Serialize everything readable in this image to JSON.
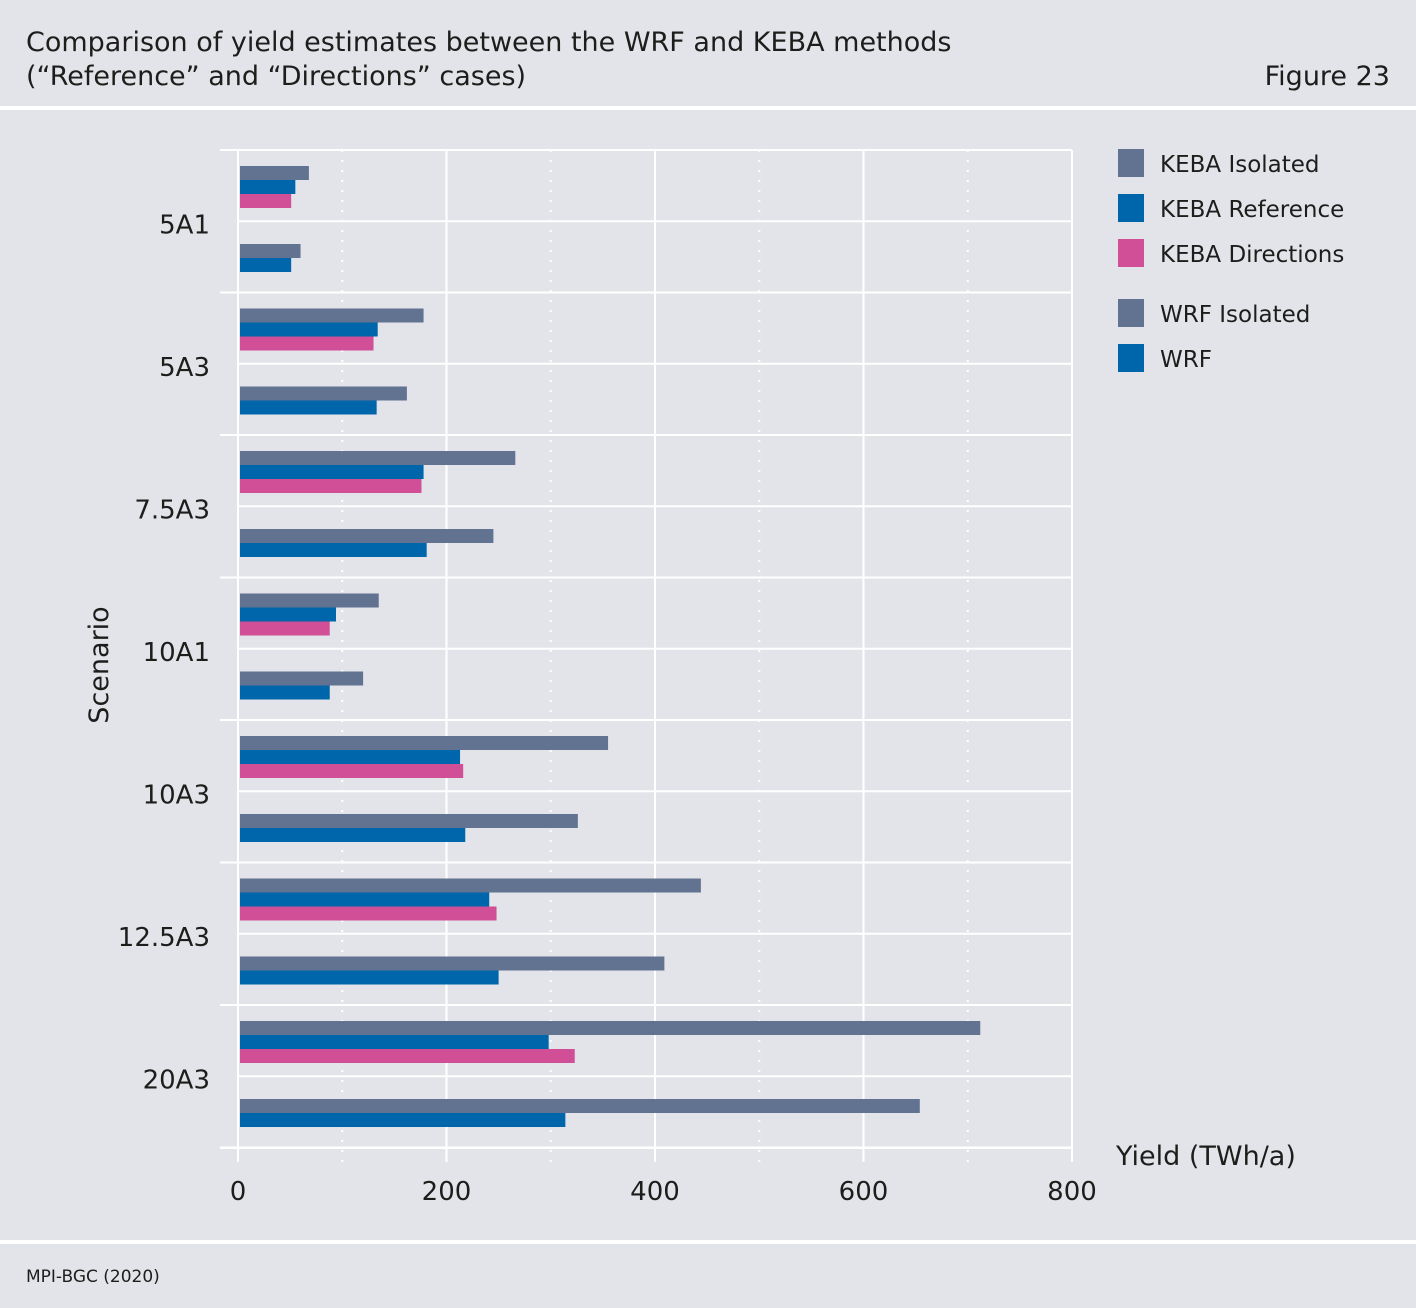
{
  "header": {
    "title_line1": "Comparison of yield estimates between the WRF and KEBA methods",
    "title_line2": "(“Reference” and “Directions” cases)",
    "figure_label": "Figure 23"
  },
  "footer": {
    "source": "MPI-BGC (2020)"
  },
  "colors": {
    "isolated": "#627291",
    "reference": "#0066ab",
    "directions": "#d14f96",
    "grid": "#ffffff"
  },
  "chart_data": {
    "type": "bar",
    "orientation": "horizontal",
    "xlabel": "Yield (TWh/a)",
    "ylabel": "Scenario",
    "xlim": [
      0,
      800
    ],
    "xticks": [
      0,
      200,
      400,
      600,
      800
    ],
    "categories": [
      "5A1",
      "5A3",
      "7.5A3",
      "10A1",
      "10A3",
      "12.5A3",
      "20A3"
    ],
    "series": [
      {
        "name": "KEBA Isolated",
        "group": "KEBA",
        "color": "#627291",
        "values": [
          68,
          178,
          266,
          135,
          355,
          444,
          712
        ]
      },
      {
        "name": "KEBA Reference",
        "group": "KEBA",
        "color": "#0066ab",
        "values": [
          55,
          134,
          178,
          94,
          213,
          241,
          298
        ]
      },
      {
        "name": "KEBA Directions",
        "group": "KEBA",
        "color": "#d14f96",
        "values": [
          51,
          130,
          176,
          88,
          216,
          248,
          323
        ]
      },
      {
        "name": "WRF Isolated",
        "group": "WRF",
        "color": "#627291",
        "values": [
          60,
          162,
          245,
          120,
          326,
          409,
          654
        ]
      },
      {
        "name": "WRF",
        "group": "WRF",
        "color": "#0066ab",
        "values": [
          51,
          133,
          181,
          88,
          218,
          250,
          314
        ]
      }
    ],
    "grid": true,
    "legend_position": "right"
  }
}
